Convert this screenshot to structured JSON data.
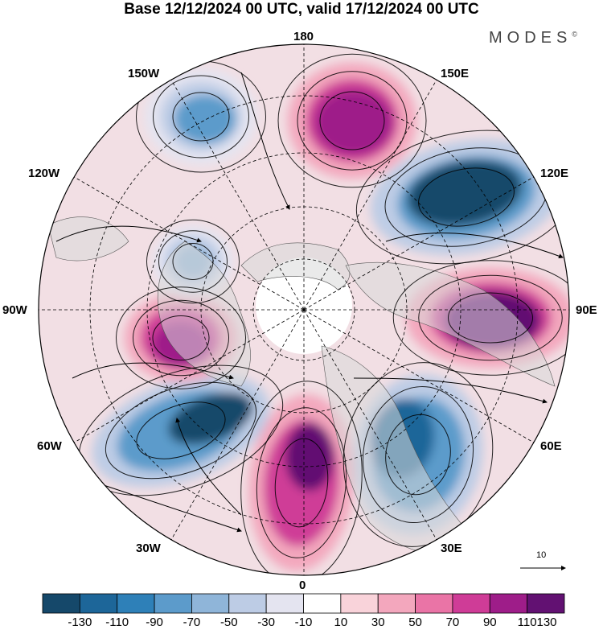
{
  "title": "Base 12/12/2024 00 UTC, valid 17/12/2024 00 UTC",
  "brand": {
    "text": "MODES",
    "mark": "©"
  },
  "longitude_labels": [
    {
      "id": "180",
      "text": "180"
    },
    {
      "id": "150E",
      "text": "150E"
    },
    {
      "id": "120E",
      "text": "120E"
    },
    {
      "id": "90E",
      "text": "90E"
    },
    {
      "id": "60E",
      "text": "60E"
    },
    {
      "id": "30E",
      "text": "30E"
    },
    {
      "id": "0",
      "text": "0"
    },
    {
      "id": "30W",
      "text": "30W"
    },
    {
      "id": "60W",
      "text": "60W"
    },
    {
      "id": "90W",
      "text": "90W"
    },
    {
      "id": "120W",
      "text": "120W"
    },
    {
      "id": "150W",
      "text": "150W"
    }
  ],
  "colorbar": {
    "colors": [
      "#15486a",
      "#1d6699",
      "#2e80b8",
      "#5c9bcb",
      "#8fb5d9",
      "#bdcce5",
      "#e4e4f0",
      "#ffffff",
      "#f9d3da",
      "#f3a7bd",
      "#ea74a6",
      "#cf3c97",
      "#9e1d89",
      "#621172"
    ],
    "ticks": [
      "-130",
      "-110",
      "-90",
      "-70",
      "-50",
      "-30",
      "-10",
      "10",
      "30",
      "50",
      "70",
      "90",
      "110",
      "130"
    ]
  },
  "vector_reference": {
    "value": "10"
  },
  "map": {
    "projection": "north polar stereographic",
    "field": "anomaly",
    "anomalies": [
      {
        "name": "positive-north-pacific",
        "sign": "positive",
        "value": 110
      },
      {
        "name": "negative-east-siberia",
        "sign": "negative",
        "value": -130
      },
      {
        "name": "positive-central-asia",
        "sign": "positive",
        "value": 130
      },
      {
        "name": "negative-europe-russia",
        "sign": "negative",
        "value": -110
      },
      {
        "name": "positive-east-atlantic",
        "sign": "positive",
        "value": 130
      },
      {
        "name": "negative-north-atlantic",
        "sign": "negative",
        "value": -130
      },
      {
        "name": "positive-hudson-bay",
        "sign": "positive",
        "value": 110
      },
      {
        "name": "negative-gulf-of-alaska",
        "sign": "negative",
        "value": -70
      },
      {
        "name": "negative-canada",
        "sign": "negative",
        "value": -50
      }
    ]
  }
}
